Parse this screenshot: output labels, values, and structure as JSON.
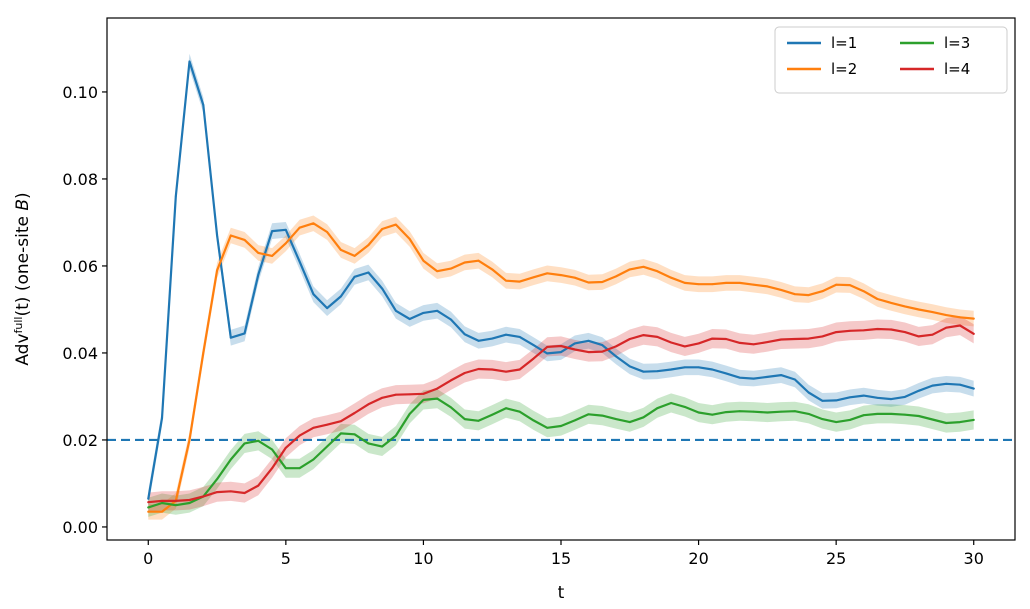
{
  "chart_data": {
    "type": "line",
    "xlabel": "t",
    "ylabel_main": "Adv",
    "ylabel_sup": "full",
    "ylabel_paren": "(t) (one-site ",
    "ylabel_italic": "B",
    "ylabel_close": ")",
    "xlim": [
      -1.5,
      31.5
    ],
    "ylim": [
      -0.003,
      0.117
    ],
    "xticks": [
      0,
      5,
      10,
      15,
      20,
      25,
      30
    ],
    "xtick_labels": [
      "0",
      "5",
      "10",
      "15",
      "20",
      "25",
      "30"
    ],
    "yticks": [
      0.0,
      0.02,
      0.04,
      0.06,
      0.08,
      0.1
    ],
    "ytick_labels": [
      "0.00",
      "0.02",
      "0.04",
      "0.06",
      "0.08",
      "0.10"
    ],
    "grid": false,
    "legend_position": "top-right",
    "reference_line": {
      "y": 0.02,
      "style": "dashed",
      "color": "#1f77b4"
    },
    "x": [
      0,
      0.5,
      1,
      1.5,
      2,
      2.5,
      3,
      3.5,
      4,
      4.5,
      5,
      5.5,
      6,
      6.5,
      7,
      7.5,
      8,
      8.5,
      9,
      9.5,
      10,
      10.5,
      11,
      11.5,
      12,
      12.5,
      13,
      13.5,
      14,
      14.5,
      15,
      15.5,
      16,
      16.5,
      17,
      17.5,
      18,
      18.5,
      19,
      19.5,
      20,
      20.5,
      21,
      21.5,
      22,
      22.5,
      23,
      23.5,
      24,
      24.5,
      25,
      25.5,
      26,
      26.5,
      27,
      27.5,
      28,
      28.5,
      29,
      29.5,
      30
    ],
    "series": [
      {
        "name": "l=1",
        "color": "#1f77b4",
        "band": 0.0018,
        "values": [
          0.0065,
          0.025,
          0.076,
          0.107,
          0.097,
          0.067,
          0.0435,
          0.0445,
          0.058,
          0.068,
          0.0683,
          0.061,
          0.0535,
          0.0503,
          0.053,
          0.0575,
          0.0585,
          0.0548,
          0.0497,
          0.0478,
          0.0492,
          0.0497,
          0.0477,
          0.0443,
          0.0428,
          0.0433,
          0.0442,
          0.0437,
          0.0418,
          0.0399,
          0.0402,
          0.0422,
          0.0428,
          0.0418,
          0.0392,
          0.0369,
          0.0357,
          0.0358,
          0.0362,
          0.0367,
          0.0367,
          0.0362,
          0.0353,
          0.0343,
          0.0341,
          0.0345,
          0.0349,
          0.0339,
          0.0309,
          0.029,
          0.0291,
          0.0298,
          0.0302,
          0.0297,
          0.0294,
          0.0299,
          0.0313,
          0.0325,
          0.0329,
          0.0327,
          0.0318
        ]
      },
      {
        "name": "l=2",
        "color": "#ff7f0e",
        "band": 0.0018,
        "values": [
          0.0035,
          0.0035,
          0.006,
          0.02,
          0.04,
          0.059,
          0.067,
          0.066,
          0.063,
          0.0623,
          0.0652,
          0.0688,
          0.0698,
          0.0678,
          0.0637,
          0.0623,
          0.0648,
          0.0685,
          0.0695,
          0.0662,
          0.0612,
          0.0588,
          0.0594,
          0.0608,
          0.0612,
          0.0592,
          0.0566,
          0.0564,
          0.0574,
          0.0583,
          0.0579,
          0.0573,
          0.0562,
          0.0563,
          0.0576,
          0.0592,
          0.0598,
          0.0588,
          0.0573,
          0.0561,
          0.0558,
          0.0558,
          0.0561,
          0.0561,
          0.0557,
          0.0553,
          0.0545,
          0.0535,
          0.0533,
          0.0542,
          0.0557,
          0.0556,
          0.0542,
          0.0524,
          0.0515,
          0.0507,
          0.05,
          0.0494,
          0.0487,
          0.0482,
          0.0479
        ]
      },
      {
        "name": "l=3",
        "color": "#2ca02c",
        "band": 0.0022,
        "values": [
          0.0045,
          0.0055,
          0.005,
          0.0055,
          0.007,
          0.011,
          0.0155,
          0.0192,
          0.0198,
          0.0178,
          0.0135,
          0.0135,
          0.0155,
          0.0185,
          0.0215,
          0.0213,
          0.0192,
          0.0185,
          0.021,
          0.026,
          0.0292,
          0.0295,
          0.0275,
          0.0248,
          0.0244,
          0.0258,
          0.0273,
          0.0265,
          0.0245,
          0.0228,
          0.0232,
          0.0245,
          0.0259,
          0.0256,
          0.0248,
          0.0241,
          0.0252,
          0.0273,
          0.0285,
          0.0276,
          0.0263,
          0.0258,
          0.0264,
          0.0266,
          0.0265,
          0.0263,
          0.0265,
          0.0266,
          0.026,
          0.0248,
          0.0241,
          0.0246,
          0.0257,
          0.026,
          0.026,
          0.0258,
          0.0255,
          0.0247,
          0.0239,
          0.0241,
          0.0246
        ]
      },
      {
        "name": "l=4",
        "color": "#d62728",
        "band": 0.0022,
        "values": [
          0.0057,
          0.006,
          0.006,
          0.0062,
          0.007,
          0.008,
          0.0082,
          0.0078,
          0.0095,
          0.0135,
          0.0182,
          0.021,
          0.0228,
          0.0235,
          0.0243,
          0.0262,
          0.0282,
          0.0297,
          0.0304,
          0.0305,
          0.0306,
          0.0318,
          0.0337,
          0.0354,
          0.0363,
          0.0362,
          0.0357,
          0.0362,
          0.0387,
          0.0414,
          0.0416,
          0.0408,
          0.0402,
          0.0403,
          0.0415,
          0.0432,
          0.0441,
          0.0437,
          0.0424,
          0.0415,
          0.0422,
          0.0433,
          0.0432,
          0.0423,
          0.042,
          0.0425,
          0.0431,
          0.0432,
          0.0433,
          0.0438,
          0.0448,
          0.0451,
          0.0452,
          0.0455,
          0.0454,
          0.0448,
          0.0438,
          0.0442,
          0.0458,
          0.0463,
          0.0444
        ]
      }
    ]
  }
}
